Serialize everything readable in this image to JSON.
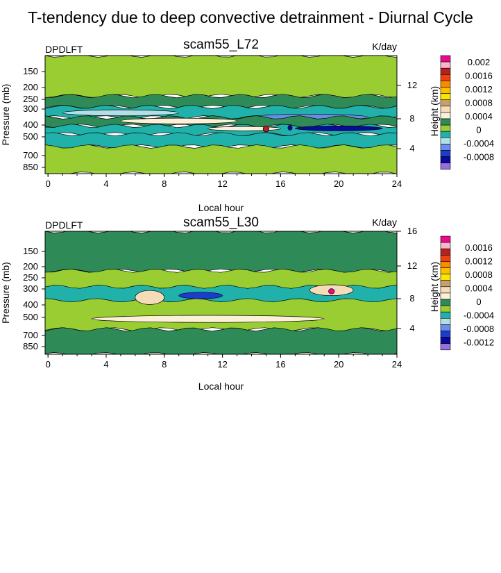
{
  "title": "T-tendency due to deep convective detrainment - Diurnal Cycle",
  "chart_data": [
    {
      "type": "heatmap",
      "title": "scam55_L72",
      "left_string": "DPDLFT",
      "right_string": "K/day",
      "xlabel": "Local hour",
      "ylabel": "Pressure (mb)",
      "ylabel_right": "Height (km)",
      "xlim": [
        -0.2,
        24
      ],
      "x_ticks": [
        "0",
        "4",
        "8",
        "12",
        "16",
        "20",
        "24"
      ],
      "y_ticks_left": [
        "150",
        "200",
        "250",
        "300",
        "400",
        "500",
        "700",
        "850"
      ],
      "y_ticks_right": [
        "4",
        "8",
        "12"
      ],
      "colorbar": {
        "labels": [
          "0.002",
          "0.0016",
          "0.0012",
          "0.0008",
          "0.0004",
          "0",
          "-0.0004",
          "-0.0008"
        ],
        "colors": [
          "#ec0a8c",
          "#f7b7c8",
          "#b22222",
          "#f04010",
          "#fa8a00",
          "#fcc000",
          "#f8e800",
          "#c8a070",
          "#f5dcb8",
          "#fbf0d8",
          "#2e8b57",
          "#9acd32",
          "#20b2aa",
          "#b0e0e6",
          "#6a8ee8",
          "#1c3cd0",
          "#0a0a9a",
          "#9370db"
        ]
      },
      "regions": [
        {
          "x": [
            -0.2,
            24
          ],
          "p": [
            80,
            190
          ],
          "color": "#9acd32"
        },
        {
          "x": [
            -0.2,
            24
          ],
          "p": [
            190,
            240
          ],
          "color": "#2e8b57"
        },
        {
          "x": [
            -0.2,
            24
          ],
          "p": [
            240,
            300
          ],
          "color": "#20b2aa"
        },
        {
          "x": [
            1,
            9
          ],
          "p": [
            255,
            290
          ],
          "color": "#b0e0e6"
        },
        {
          "x": [
            14,
            22
          ],
          "p": [
            280,
            320
          ],
          "color": "#6a8ee8"
        },
        {
          "x": [
            -0.2,
            24
          ],
          "p": [
            300,
            360
          ],
          "color": "#2e8b57"
        },
        {
          "x": [
            5,
            13
          ],
          "p": [
            305,
            345
          ],
          "color": "#fbf0d8"
        },
        {
          "x": [
            -0.2,
            24
          ],
          "p": [
            360,
            430
          ],
          "color": "#20b2aa"
        },
        {
          "x": [
            17,
            23
          ],
          "p": [
            360,
            400
          ],
          "color": "#0a0a9a"
        },
        {
          "x": [
            11,
            16
          ],
          "p": [
            365,
            400
          ],
          "color": "#fbf0d8"
        },
        {
          "x": [
            -0.2,
            24
          ],
          "p": [
            430,
            560
          ],
          "color": "#20b2aa"
        },
        {
          "x": [
            -0.2,
            24
          ],
          "p": [
            560,
            1000
          ],
          "color": "#9acd32"
        },
        {
          "x": [
            14.8,
            15.2
          ],
          "p": [
            360,
            410
          ],
          "color": "#b22222"
        },
        {
          "x": [
            16.5,
            16.8
          ],
          "p": [
            355,
            395
          ],
          "color": "#0a0a9a"
        }
      ]
    },
    {
      "type": "heatmap",
      "title": "scam55_L30",
      "left_string": "DPDLFT",
      "right_string": "K/day",
      "xlabel": "Local hour",
      "ylabel": "Pressure (mb)",
      "ylabel_right": "Height (km)",
      "xlim": [
        -0.2,
        24
      ],
      "x_ticks": [
        "0",
        "4",
        "8",
        "12",
        "16",
        "20",
        "24"
      ],
      "y_ticks_left": [
        "150",
        "200",
        "250",
        "300",
        "400",
        "500",
        "700",
        "850"
      ],
      "y_ticks_right": [
        "4",
        "8",
        "12",
        "16"
      ],
      "colorbar": {
        "labels": [
          "0.0016",
          "0.0012",
          "0.0008",
          "0.0004",
          "0",
          "-0.0004",
          "-0.0008",
          "-0.0012"
        ],
        "colors": [
          "#ec0a8c",
          "#f7b7c8",
          "#b22222",
          "#f04010",
          "#fa8a00",
          "#fcc000",
          "#f8e800",
          "#c8a070",
          "#f5dcb8",
          "#fbf0d8",
          "#2e8b57",
          "#9acd32",
          "#20b2aa",
          "#b0e0e6",
          "#6a8ee8",
          "#1c3cd0",
          "#0a0a9a",
          "#9370db"
        ]
      },
      "regions": [
        {
          "x": [
            -0.2,
            24
          ],
          "p": [
            80,
            180
          ],
          "color": "#2e8b57"
        },
        {
          "x": [
            -0.2,
            24
          ],
          "p": [
            180,
            600
          ],
          "color": "#9acd32"
        },
        {
          "x": [
            -0.2,
            24
          ],
          "p": [
            600,
            1000
          ],
          "color": "#2e8b57"
        },
        {
          "x": [
            -0.2,
            24
          ],
          "p": [
            250,
            330
          ],
          "color": "#20b2aa"
        },
        {
          "x": [
            6,
            8
          ],
          "p": [
            270,
            360
          ],
          "color": "#f5dcb8"
        },
        {
          "x": [
            18,
            21
          ],
          "p": [
            240,
            300
          ],
          "color": "#f5dcb8"
        },
        {
          "x": [
            9,
            12
          ],
          "p": [
            280,
            320
          ],
          "color": "#1c3cd0"
        },
        {
          "x": [
            19.3,
            19.7
          ],
          "p": [
            260,
            290
          ],
          "color": "#ec0a8c"
        },
        {
          "x": [
            3,
            19
          ],
          "p": [
            450,
            520
          ],
          "color": "#fbf0d8"
        }
      ]
    }
  ]
}
